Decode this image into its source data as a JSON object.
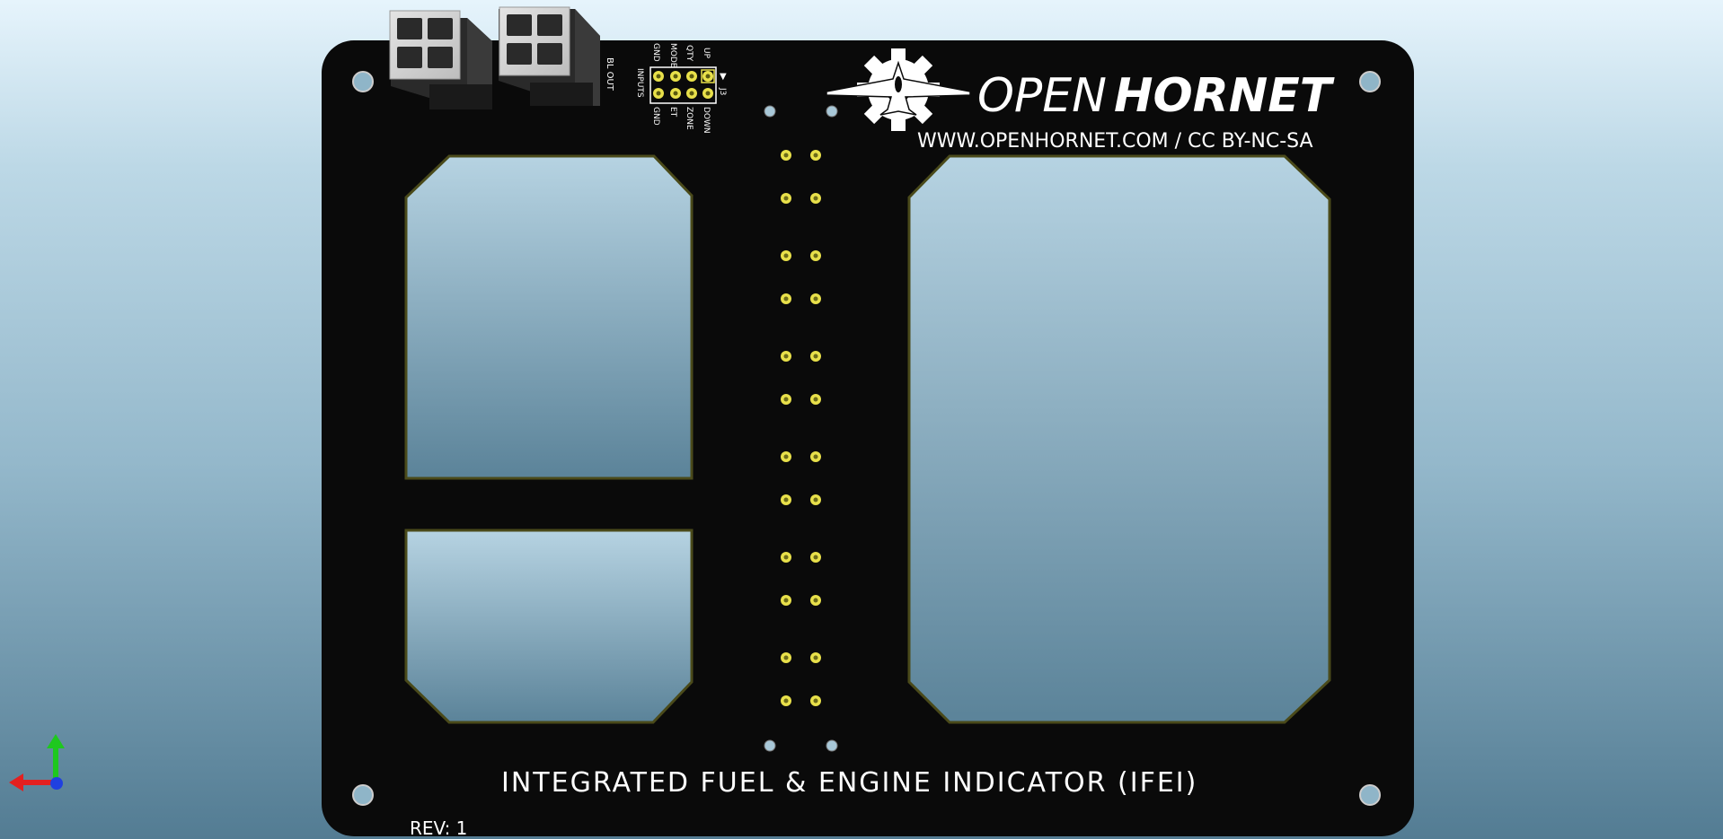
{
  "board": {
    "logo_open": "OPEN",
    "logo_hornet": "HORNET",
    "website": "WWW.OPENHORNET.COM / CC BY-NC-SA",
    "title": "INTEGRATED FUEL & ENGINE INDICATOR (IFEI)",
    "revision": "REV: 1",
    "connector_label": "BL OUT",
    "header_ref": "J3",
    "header_group_label": "INPUTS",
    "header_pins_left": [
      "UP",
      "QTY",
      "MODE",
      "GND"
    ],
    "header_pins_right": [
      "DOWN",
      "ZONE",
      "ET",
      "GND"
    ]
  },
  "colors": {
    "pcb": "#0a0a0a",
    "pad": "#e8e04a",
    "silkscreen": "#ffffff",
    "connector_body": "#d8d8d8",
    "axis_x": "#e32020",
    "axis_y": "#1ec81e",
    "axis_z": "#2040e0"
  },
  "icons": [
    "openhornet-jet-gear-logo-icon",
    "axis-gizmo-icon",
    "molex-connector-icon"
  ]
}
